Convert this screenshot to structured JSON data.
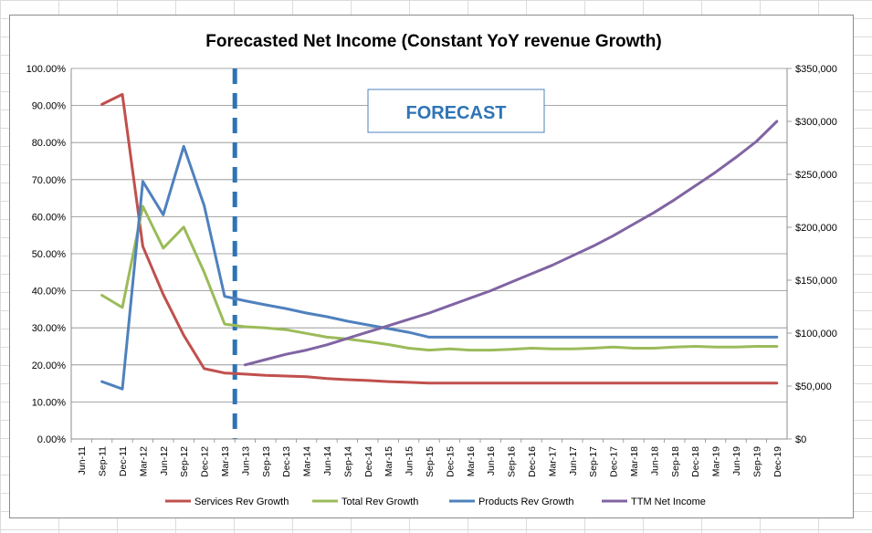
{
  "chart_data": {
    "type": "line",
    "title": "Forecasted Net Income (Constant YoY revenue Growth)",
    "annotation": "FORECAST",
    "x": [
      "Jun-11",
      "Sep-11",
      "Dec-11",
      "Mar-12",
      "Jun-12",
      "Sep-12",
      "Dec-12",
      "Mar-13",
      "Jun-13",
      "Sep-13",
      "Dec-13",
      "Mar-14",
      "Jun-14",
      "Sep-14",
      "Dec-14",
      "Mar-15",
      "Jun-15",
      "Sep-15",
      "Dec-15",
      "Mar-16",
      "Jun-16",
      "Sep-16",
      "Dec-16",
      "Mar-17",
      "Jun-17",
      "Sep-17",
      "Dec-17",
      "Mar-18",
      "Jun-18",
      "Sep-18",
      "Dec-18",
      "Mar-19",
      "Jun-19",
      "Sep-19",
      "Dec-19"
    ],
    "forecast_start": "Jun-13",
    "y_left": {
      "min": 0,
      "max": 100,
      "step": 10,
      "format": "percent"
    },
    "y_right": {
      "min": 0,
      "max": 350000,
      "step": 50000,
      "format": "dollar"
    },
    "legend_position": "bottom",
    "series": [
      {
        "name": "Services Rev Growth",
        "axis": "left",
        "color": "#c0504d",
        "values": [
          null,
          90.3,
          93.0,
          52.0,
          39.0,
          28.0,
          19.0,
          17.8,
          17.5,
          17.2,
          17.0,
          16.8,
          16.3,
          16.0,
          15.8,
          15.5,
          15.3,
          15.1,
          15.1,
          15.1,
          15.1,
          15.1,
          15.1,
          15.1,
          15.1,
          15.1,
          15.1,
          15.1,
          15.1,
          15.1,
          15.1,
          15.1,
          15.1,
          15.1,
          15.1
        ]
      },
      {
        "name": "Total Rev Growth",
        "axis": "left",
        "color": "#9bbb59",
        "values": [
          null,
          38.8,
          35.5,
          62.8,
          51.5,
          57.2,
          45.0,
          31.0,
          30.3,
          30.0,
          29.5,
          28.5,
          27.5,
          27.0,
          26.3,
          25.5,
          24.5,
          24.0,
          24.3,
          24.0,
          24.0,
          24.2,
          24.5,
          24.3,
          24.3,
          24.5,
          24.8,
          24.5,
          24.5,
          24.8,
          25.0,
          24.8,
          24.8,
          25.0,
          25.0
        ]
      },
      {
        "name": "Products Rev Growth",
        "axis": "left",
        "color": "#4f81bd",
        "values": [
          null,
          15.5,
          13.5,
          69.5,
          60.5,
          79.0,
          63.0,
          38.5,
          37.3,
          36.2,
          35.2,
          34.0,
          33.0,
          31.8,
          30.8,
          29.8,
          28.8,
          27.5,
          27.5,
          27.5,
          27.5,
          27.5,
          27.5,
          27.5,
          27.5,
          27.5,
          27.5,
          27.5,
          27.5,
          27.5,
          27.5,
          27.5,
          27.5,
          27.5,
          27.5
        ]
      },
      {
        "name": "TTM Net Income",
        "axis": "right",
        "color": "#8064a2",
        "values": [
          null,
          null,
          null,
          null,
          null,
          null,
          null,
          null,
          70000,
          75000,
          80000,
          84000,
          89000,
          95000,
          101000,
          107000,
          113000,
          119000,
          126000,
          133000,
          140000,
          148000,
          156000,
          164000,
          173000,
          182000,
          192000,
          203000,
          214000,
          226000,
          239000,
          252000,
          266000,
          281000,
          300000
        ]
      }
    ]
  }
}
